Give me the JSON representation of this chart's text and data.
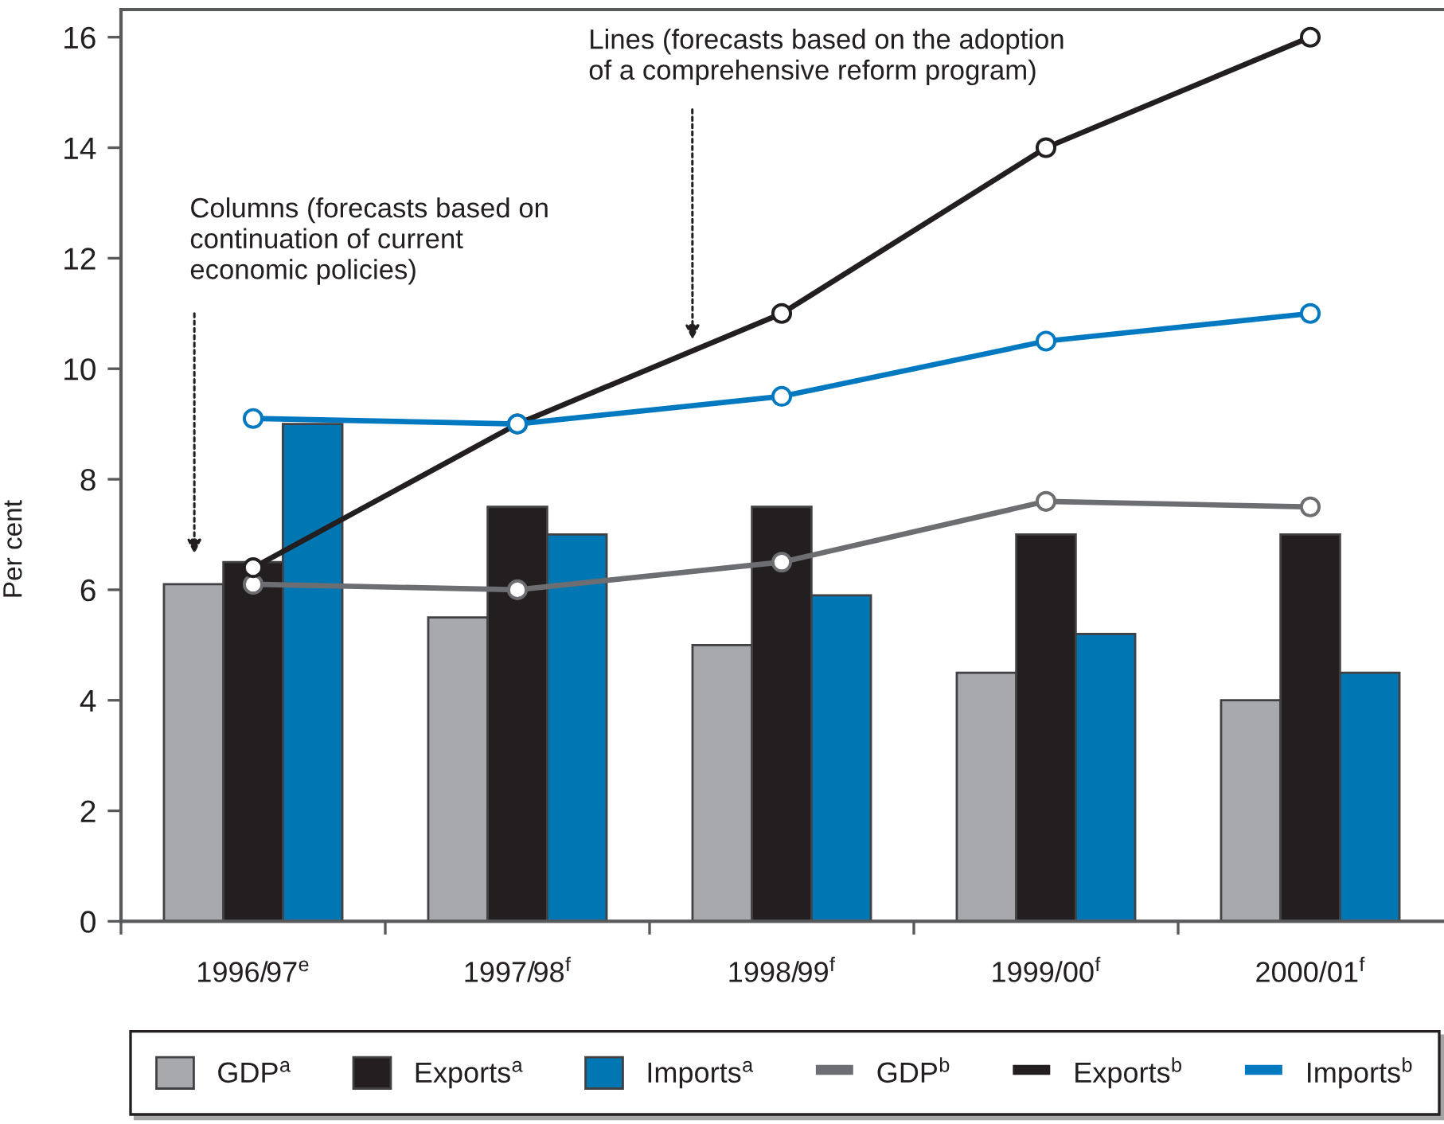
{
  "chart_data": {
    "type": "bar",
    "ylabel": "Per cent",
    "categories": [
      "1996/97$^{e}$",
      "1997/98$^{f}$",
      "1998/99$^{f}$",
      "1999/00$^{f}$",
      "2000/01$^{f}$"
    ],
    "series": [
      {
        "name": "GDP$^{a}$",
        "color": "#a7a9ac",
        "values": [
          6.1,
          5.5,
          5.0,
          4.5,
          4.0
        ]
      },
      {
        "name": "Exports$^{a}$",
        "color": "#231f20",
        "values": [
          6.5,
          7.5,
          7.5,
          7.0,
          7.0
        ]
      },
      {
        "name": "Imports$^{a}$",
        "color": "#0077b3",
        "values": [
          9.0,
          7.0,
          5.9,
          5.2,
          4.5
        ]
      },
      {
        "name": "GDP$^{b}$",
        "type": "line",
        "color": "#6d6e71",
        "values": [
          6.1,
          6.0,
          6.5,
          7.6,
          7.5
        ]
      },
      {
        "name": "Exports$^{b}$",
        "type": "line",
        "color": "#231f20",
        "values": [
          6.4,
          9.0,
          11.0,
          14.0,
          16.0
        ]
      },
      {
        "name": "Imports$^{b}$",
        "type": "line",
        "color": "#0079c1",
        "values": [
          9.1,
          9.0,
          9.5,
          10.5,
          11.0
        ]
      }
    ],
    "ylim": [
      0,
      16.5
    ],
    "yticks": [
      0,
      2,
      4,
      6,
      8,
      10,
      12,
      14,
      16
    ],
    "legend": "bottom",
    "marker": "circle",
    "line_style": "solid",
    "annotations": [
      "Columns (forecasts based on\ncontinuation of current\neconomic policies)",
      "Lines (forecasts based on the adoption\nof a comprehensive reform program)"
    ]
  }
}
